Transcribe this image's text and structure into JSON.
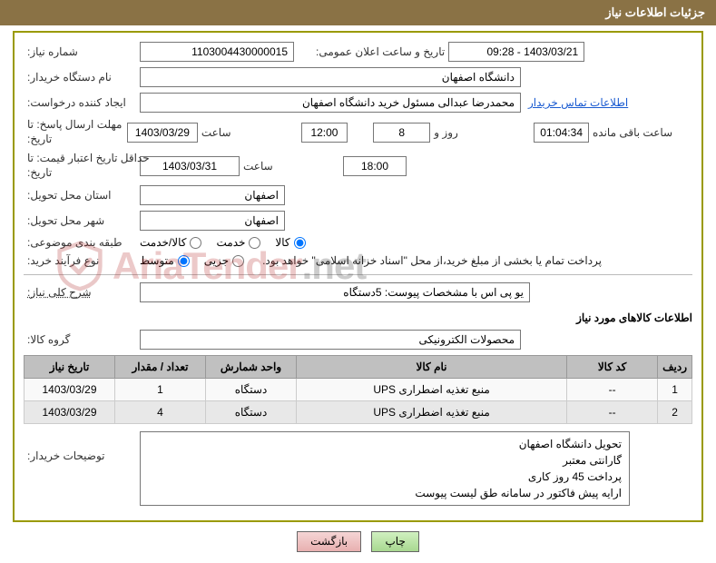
{
  "header": {
    "title": "جزئیات اطلاعات نیاز"
  },
  "req": {
    "num_label": "شماره نیاز:",
    "num_value": "1103004430000015",
    "datetime_label": "تاریخ و ساعت اعلان عمومی:",
    "datetime_value": "1403/03/21 - 09:28",
    "buyer_label": "نام دستگاه خریدار:",
    "buyer_value": "دانشگاه اصفهان",
    "requester_label": "ایجاد کننده درخواست:",
    "requester_value": "محمدرضا عبدالی مسئول خرید دانشگاه اصفهان",
    "buyer_contact": "اطلاعات تماس خریدار"
  },
  "t": {
    "date_label_short": "تاریخ:",
    "time_label_short": "ساعت",
    "day_and": "روز و",
    "remain": "ساعت باقی مانده"
  },
  "deadline": {
    "label1": "مهلت ارسال پاسخ: تا",
    "date": "1403/03/29",
    "time": "12:00",
    "days": "8",
    "countdown": "01:04:34"
  },
  "validity": {
    "label1": "حداقل تاریخ اعتبار قیمت: تا",
    "date": "1403/03/31",
    "time": "18:00"
  },
  "loc": {
    "province_label": "استان محل تحویل:",
    "province_value": "اصفهان",
    "city_label": "شهر محل تحویل:",
    "city_value": "اصفهان"
  },
  "cat": {
    "label": "طبقه بندی موضوعی:",
    "opts": [
      "کالا",
      "خدمت",
      "کالا/خدمت"
    ],
    "selected": 0
  },
  "ptype": {
    "label": "نوع فرآیند خرید:",
    "opts": [
      "جزیی",
      "متوسط"
    ],
    "selected": 1,
    "note": "پرداخت تمام یا بخشی از مبلغ خرید،از محل \"اسناد خزانه اسلامی\" خواهد بود."
  },
  "desc": {
    "label": "شرح کلی نیاز:",
    "value": "یو پی اس   با مشخصات پیوست:     5دستگاه"
  },
  "goods_section": "اطلاعات کالاهای مورد نیاز",
  "group": {
    "label": "گروه کالا:",
    "value": "محصولات الکترونیکی"
  },
  "table": {
    "headers": [
      "ردیف",
      "کد کالا",
      "نام کالا",
      "واحد شمارش",
      "تعداد / مقدار",
      "تاریخ نیاز"
    ],
    "rows": [
      {
        "cells": [
          "1",
          "--",
          "منبع تغذیه اضطراری UPS",
          "دستگاه",
          "1",
          "1403/03/29"
        ]
      },
      {
        "cells": [
          "2",
          "--",
          "منبع تغذیه اضطراری UPS",
          "دستگاه",
          "4",
          "1403/03/29"
        ]
      }
    ]
  },
  "bdesc": {
    "label": "توضیحات خریدار:",
    "lines": [
      "تحویل دانشگاه اصفهان",
      "گارانتی معتبر",
      "پرداخت 45 روز کاری",
      "ارایه پیش فاکتور در سامانه طق لیست پیوست"
    ]
  },
  "buttons": {
    "print": "چاپ",
    "back": "بازگشت"
  },
  "watermark": {
    "p1": "AriaTender",
    "p2": ".net"
  }
}
